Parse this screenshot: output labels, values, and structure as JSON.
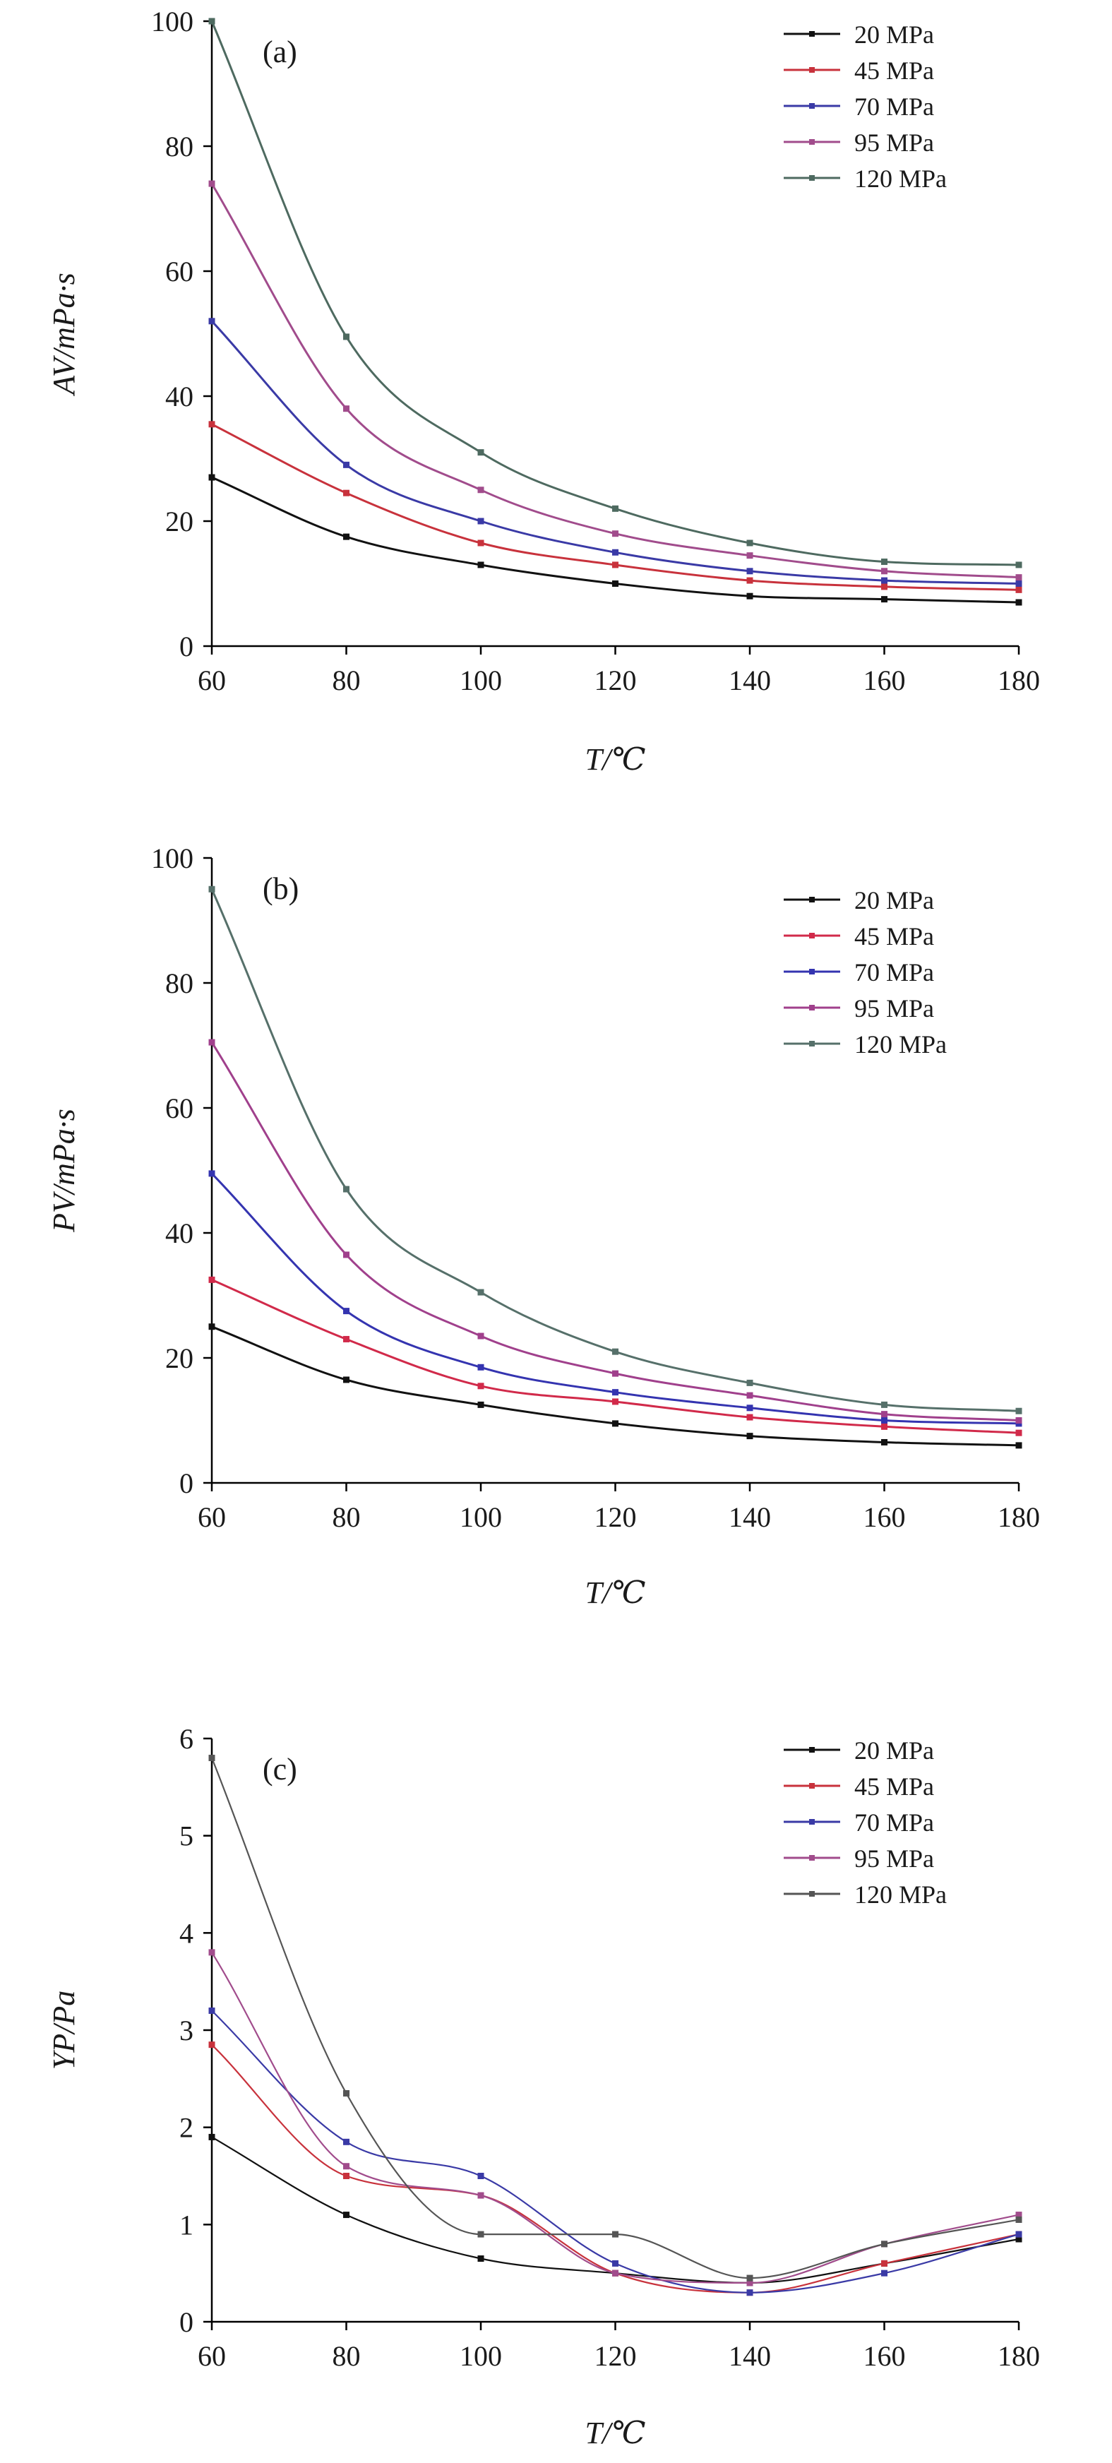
{
  "chart_data": [
    {
      "type": "line",
      "panel_label": "(a)",
      "xlabel": "T/℃",
      "ylabel": "AV/mPa·s",
      "xlim": [
        60,
        180
      ],
      "ylim": [
        0,
        100
      ],
      "x_ticks": [
        60,
        80,
        100,
        120,
        140,
        160,
        180
      ],
      "y_ticks": [
        0,
        20,
        40,
        60,
        80,
        100
      ],
      "grid": false,
      "legend_position": "top-right",
      "x": [
        60,
        80,
        100,
        120,
        140,
        160,
        180
      ],
      "series": [
        {
          "name": "20 MPa",
          "color": "#111111",
          "values": [
            27,
            17.5,
            13,
            10,
            8,
            7.5,
            7
          ]
        },
        {
          "name": "45 MPa",
          "color": "#c8323c",
          "values": [
            35.5,
            24.5,
            16.5,
            13,
            10.5,
            9.5,
            9
          ]
        },
        {
          "name": "70 MPa",
          "color": "#3a3aa6",
          "values": [
            52,
            29,
            20,
            15,
            12,
            10.5,
            10
          ]
        },
        {
          "name": "95 MPa",
          "color": "#a14c8c",
          "values": [
            74,
            38,
            25,
            18,
            14.5,
            12,
            11
          ]
        },
        {
          "name": "120 MPa",
          "color": "#4e6a60",
          "values": [
            100,
            49.5,
            31,
            22,
            16.5,
            13.5,
            13
          ]
        }
      ]
    },
    {
      "type": "line",
      "panel_label": "(b)",
      "xlabel": "T/℃",
      "ylabel": "PV/mPa·s",
      "xlim": [
        60,
        180
      ],
      "ylim": [
        0,
        100
      ],
      "x_ticks": [
        60,
        80,
        100,
        120,
        140,
        160,
        180
      ],
      "y_ticks": [
        0,
        20,
        40,
        60,
        80,
        100
      ],
      "grid": false,
      "legend_position": "top-right",
      "x": [
        60,
        80,
        100,
        120,
        140,
        160,
        180
      ],
      "series": [
        {
          "name": "20 MPa",
          "color": "#111111",
          "values": [
            25,
            16.5,
            12.5,
            9.5,
            7.5,
            6.5,
            6
          ]
        },
        {
          "name": "45 MPa",
          "color": "#d12a4a",
          "values": [
            32.5,
            23,
            15.5,
            13,
            10.5,
            9,
            8
          ]
        },
        {
          "name": "70 MPa",
          "color": "#3434b0",
          "values": [
            49.5,
            27.5,
            18.5,
            14.5,
            12,
            10,
            9.5
          ]
        },
        {
          "name": "95 MPa",
          "color": "#a0408c",
          "values": [
            70.5,
            36.5,
            23.5,
            17.5,
            14,
            11,
            10
          ]
        },
        {
          "name": "120 MPa",
          "color": "#56706a",
          "values": [
            95,
            47,
            30.5,
            21,
            16,
            12.5,
            11.5
          ]
        }
      ]
    },
    {
      "type": "line",
      "panel_label": "(c)",
      "xlabel": "T/℃",
      "ylabel": "YP/Pa",
      "xlim": [
        60,
        180
      ],
      "ylim": [
        0,
        6
      ],
      "x_ticks": [
        60,
        80,
        100,
        120,
        140,
        160,
        180
      ],
      "y_ticks": [
        0,
        1,
        2,
        3,
        4,
        5,
        6
      ],
      "grid": false,
      "legend_position": "top-right",
      "x": [
        60,
        80,
        100,
        120,
        140,
        160,
        180
      ],
      "series": [
        {
          "name": "20 MPa",
          "color": "#111111",
          "values": [
            1.9,
            1.1,
            0.65,
            0.5,
            0.4,
            0.6,
            0.85
          ]
        },
        {
          "name": "45 MPa",
          "color": "#c8323c",
          "values": [
            2.85,
            1.5,
            1.3,
            0.5,
            0.3,
            0.6,
            0.9
          ]
        },
        {
          "name": "70 MPa",
          "color": "#3a3aa6",
          "values": [
            3.2,
            1.85,
            1.5,
            0.6,
            0.3,
            0.5,
            0.9
          ]
        },
        {
          "name": "95 MPa",
          "color": "#a14c8c",
          "values": [
            3.8,
            1.6,
            1.3,
            0.5,
            0.4,
            0.8,
            1.1
          ]
        },
        {
          "name": "120 MPa",
          "color": "#555555",
          "values": [
            5.8,
            2.35,
            0.9,
            0.9,
            0.45,
            0.8,
            1.05
          ]
        }
      ]
    }
  ]
}
